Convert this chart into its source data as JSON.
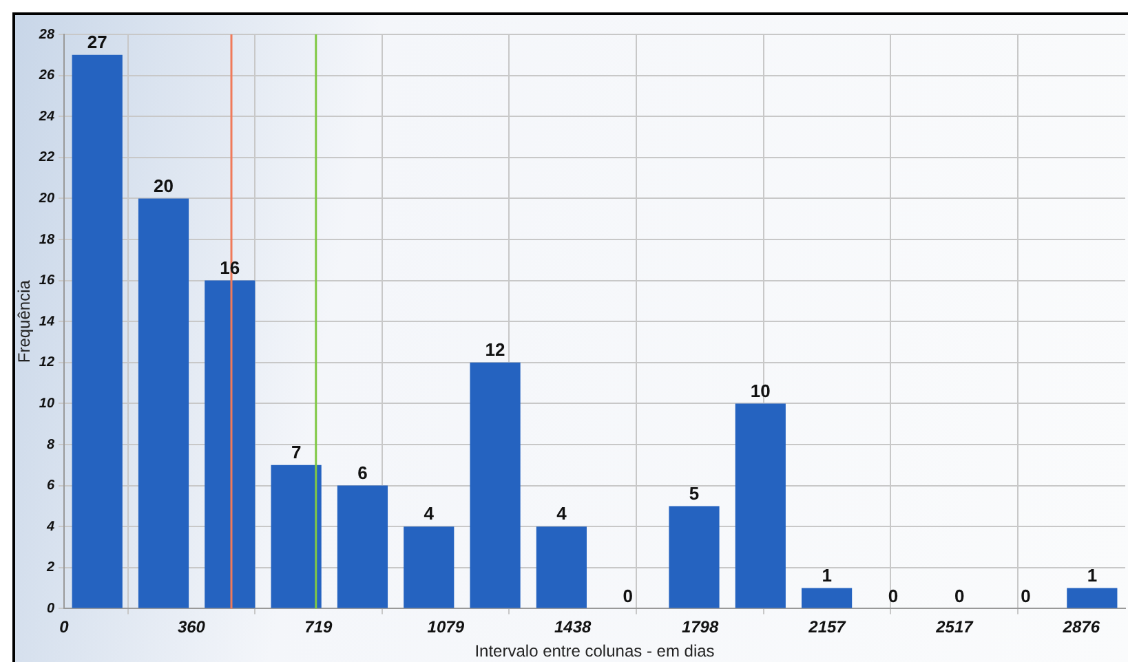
{
  "chart_data": {
    "type": "histogram",
    "xlabel": "Intervalo entre colunas - em dias",
    "ylabel": "Frequência",
    "bins": [
      0,
      187.5,
      375,
      562.5,
      750,
      937.5,
      1125,
      1312.5,
      1500,
      1687.5,
      1875,
      2062.5,
      2250,
      2437.5,
      2625,
      2812.5,
      3000
    ],
    "values": [
      27,
      20,
      16,
      7,
      6,
      4,
      12,
      4,
      0,
      5,
      10,
      1,
      0,
      0,
      0,
      1
    ],
    "color": "#2563c0",
    "xlim": [
      0,
      3000
    ],
    "xticks": [
      0,
      360,
      719,
      1079,
      1438,
      1798,
      2157,
      2517,
      2876
    ],
    "ylim": [
      0,
      28
    ],
    "yticks": [
      0,
      2,
      4,
      6,
      8,
      10,
      12,
      14,
      16,
      18,
      20,
      22,
      24,
      26,
      28
    ],
    "ref_lines": [
      {
        "axis": "x",
        "value": 473,
        "color": "#f07a5a"
      },
      {
        "axis": "x",
        "value": 712,
        "color": "#80c844"
      }
    ],
    "grid": true,
    "data_labels": true,
    "legend": false
  }
}
